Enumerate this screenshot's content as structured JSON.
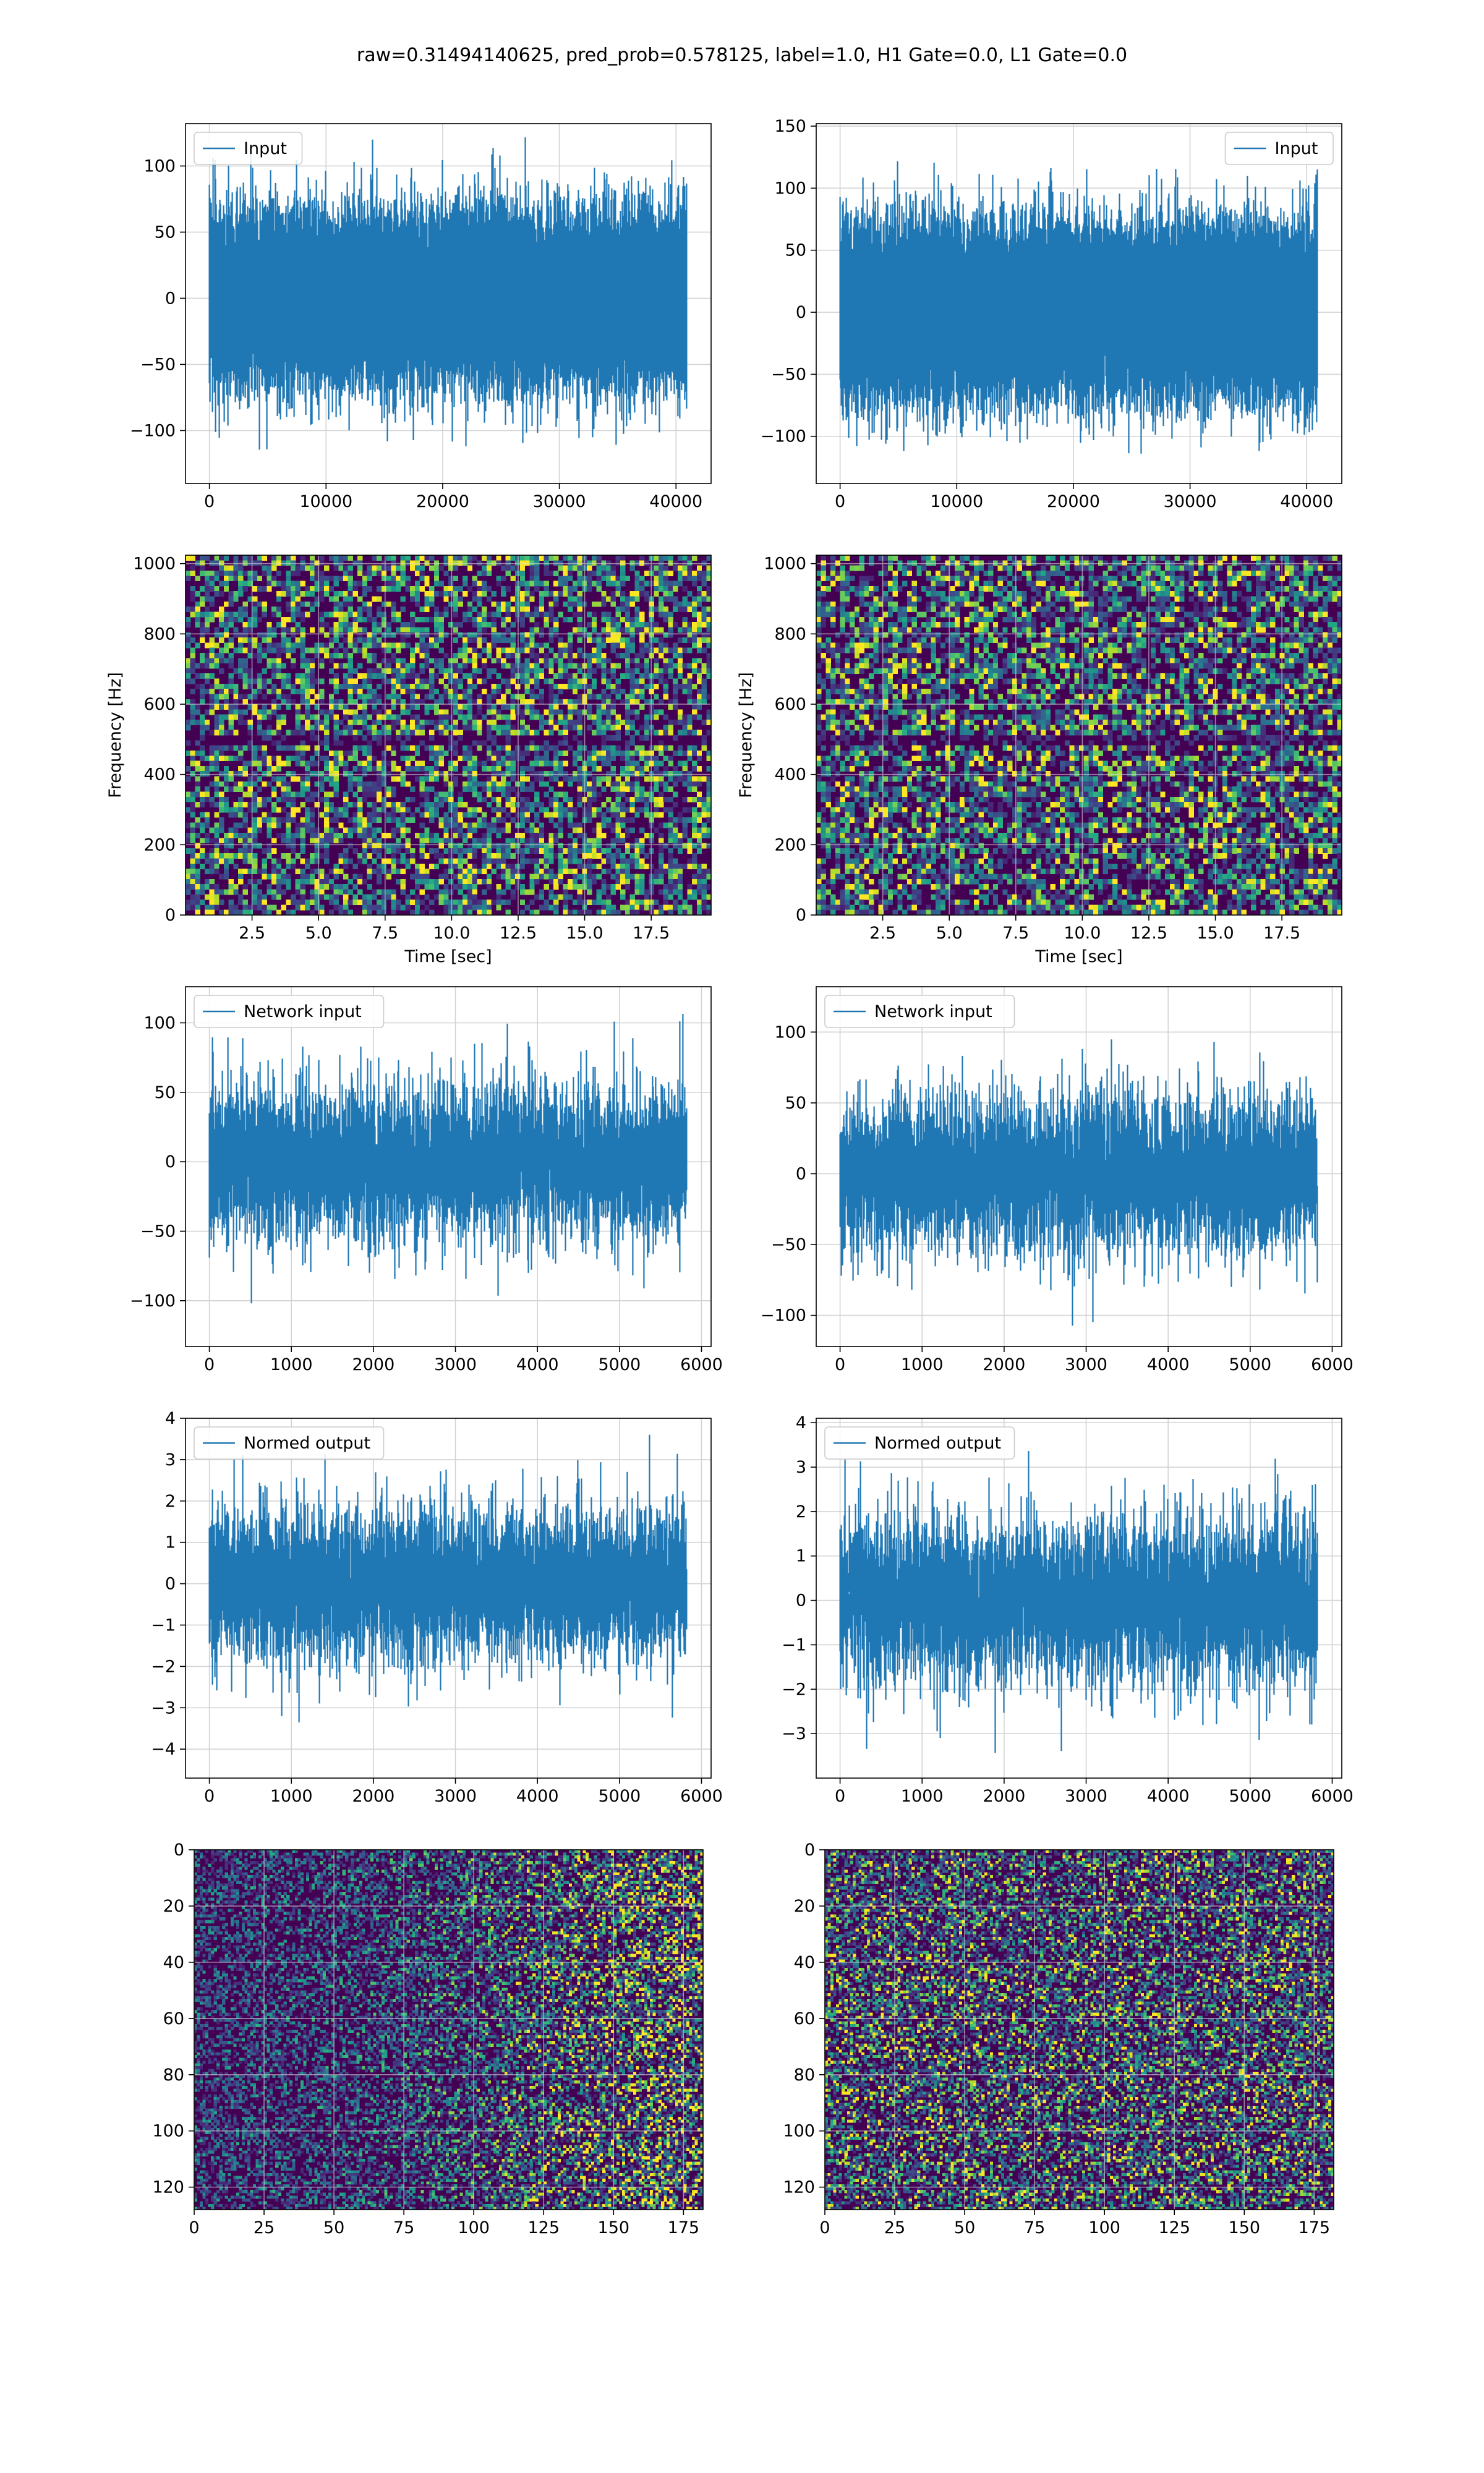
{
  "figure": {
    "suptitle": "raw=0.31494140625, pred_prob=0.578125, label=1.0, H1 Gate=0.0, L1 Gate=0.0"
  },
  "colors": {
    "line": "#1f77b4",
    "grid": "#b0b0b0",
    "viridis_low": "#440154",
    "viridis_mid": "#21918c",
    "viridis_high": "#fde725"
  },
  "chart_data": [
    {
      "id": "h1-input",
      "type": "line",
      "legend": [
        "Input"
      ],
      "legend_loc": "upper-left",
      "xlim": [
        -2048,
        43008
      ],
      "ylim": [
        -140,
        132
      ],
      "xticks": [
        0,
        10000,
        20000,
        30000,
        40000
      ],
      "yticks": [
        -100,
        -50,
        0,
        50,
        100
      ],
      "xlabel": "",
      "ylabel": "",
      "grid": true,
      "n_points": 40960,
      "approx_sigma": 30,
      "approx_min": -131,
      "approx_max": 122
    },
    {
      "id": "l1-input",
      "type": "line",
      "legend": [
        "Input"
      ],
      "legend_loc": "upper-right",
      "xlim": [
        -2048,
        43008
      ],
      "ylim": [
        -138,
        152
      ],
      "xticks": [
        0,
        10000,
        20000,
        30000,
        40000
      ],
      "yticks": [
        -100,
        -50,
        0,
        50,
        100,
        150
      ],
      "xlabel": "",
      "ylabel": "",
      "grid": true,
      "n_points": 40960,
      "approx_sigma": 32,
      "approx_min": -125,
      "approx_max": 138
    },
    {
      "id": "h1-spectrogram",
      "type": "heatmap",
      "colormap": "viridis",
      "xlim": [
        0,
        19.75
      ],
      "ylim": [
        0,
        1024
      ],
      "xticks": [
        2.5,
        5.0,
        7.5,
        10.0,
        12.5,
        15.0,
        17.5
      ],
      "yticks": [
        0,
        200,
        400,
        600,
        800,
        1000
      ],
      "xlabel": "Time [sec]",
      "ylabel": "Frequency [Hz]",
      "grid": true
    },
    {
      "id": "l1-spectrogram",
      "type": "heatmap",
      "colormap": "viridis",
      "xlim": [
        0,
        19.75
      ],
      "ylim": [
        0,
        1024
      ],
      "xticks": [
        2.5,
        5.0,
        7.5,
        10.0,
        12.5,
        15.0,
        17.5
      ],
      "yticks": [
        0,
        200,
        400,
        600,
        800,
        1000
      ],
      "xlabel": "Time [sec]",
      "ylabel": "Frequency [Hz]",
      "grid": true
    },
    {
      "id": "h1-network-input",
      "type": "line",
      "legend": [
        "Network input"
      ],
      "legend_loc": "upper-left",
      "xlim": [
        -291,
        6117
      ],
      "ylim": [
        -133,
        126
      ],
      "xticks": [
        0,
        1000,
        2000,
        3000,
        4000,
        5000,
        6000
      ],
      "yticks": [
        -100,
        -50,
        0,
        50,
        100
      ],
      "xlabel": "",
      "ylabel": "",
      "grid": true,
      "n_points": 5826,
      "approx_sigma": 30,
      "approx_min": -131,
      "approx_max": 108
    },
    {
      "id": "l1-network-input",
      "type": "line",
      "legend": [
        "Network input"
      ],
      "legend_loc": "upper-left",
      "xlim": [
        -291,
        6117
      ],
      "ylim": [
        -122,
        132
      ],
      "xticks": [
        0,
        1000,
        2000,
        3000,
        4000,
        5000,
        6000
      ],
      "yticks": [
        -100,
        -50,
        0,
        50,
        100
      ],
      "xlabel": "",
      "ylabel": "",
      "grid": true,
      "n_points": 5826,
      "approx_sigma": 30,
      "approx_min": -110,
      "approx_max": 120
    },
    {
      "id": "h1-normed-output",
      "type": "line",
      "legend": [
        "Normed output"
      ],
      "legend_loc": "upper-left",
      "xlim": [
        -291,
        6117
      ],
      "ylim": [
        -4.7,
        4.0
      ],
      "xticks": [
        0,
        1000,
        2000,
        3000,
        4000,
        5000,
        6000
      ],
      "yticks": [
        -4,
        -3,
        -2,
        -1,
        0,
        1,
        2,
        3,
        4
      ],
      "xlabel": "",
      "ylabel": "",
      "grid": true,
      "n_points": 5826,
      "approx_sigma": 1.0,
      "approx_min": -4.2,
      "approx_max": 3.6
    },
    {
      "id": "l1-normed-output",
      "type": "line",
      "legend": [
        "Normed output"
      ],
      "legend_loc": "upper-left",
      "xlim": [
        -291,
        6117
      ],
      "ylim": [
        -4.0,
        4.1
      ],
      "xticks": [
        0,
        1000,
        2000,
        3000,
        4000,
        5000,
        6000
      ],
      "yticks": [
        -3,
        -2,
        -1,
        0,
        1,
        2,
        3,
        4
      ],
      "xlabel": "",
      "ylabel": "",
      "grid": true,
      "n_points": 5826,
      "approx_sigma": 1.0,
      "approx_min": -3.5,
      "approx_max": 3.8
    },
    {
      "id": "h1-network-spectrogram",
      "type": "heatmap",
      "colormap": "viridis",
      "xlim": [
        0,
        182
      ],
      "ylim": [
        128,
        0
      ],
      "rows": 128,
      "cols": 182,
      "xticks": [
        0,
        25,
        50,
        75,
        100,
        125,
        150,
        175
      ],
      "yticks": [
        0,
        20,
        40,
        60,
        80,
        100,
        120
      ],
      "xlabel": "",
      "ylabel": "",
      "grid": true,
      "brighter_toward_right": true
    },
    {
      "id": "l1-network-spectrogram",
      "type": "heatmap",
      "colormap": "viridis",
      "xlim": [
        0,
        182
      ],
      "ylim": [
        128,
        0
      ],
      "rows": 128,
      "cols": 182,
      "xticks": [
        0,
        25,
        50,
        75,
        100,
        125,
        150,
        175
      ],
      "yticks": [
        0,
        20,
        40,
        60,
        80,
        100,
        120
      ],
      "xlabel": "",
      "ylabel": "",
      "grid": true,
      "brighter_toward_right": false
    }
  ]
}
